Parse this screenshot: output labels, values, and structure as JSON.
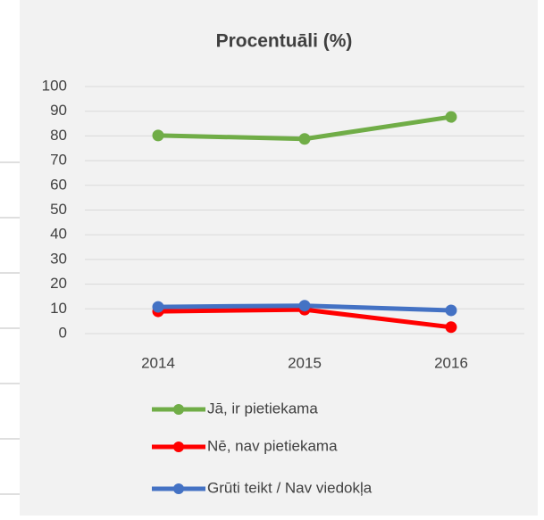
{
  "chart_data": {
    "type": "line",
    "title": "Procentuāli (%)",
    "categories": [
      "2014",
      "2015",
      "2016"
    ],
    "series": [
      {
        "name": "Jā, ir pietiekama",
        "color": "#70ad47",
        "values": [
          80.2,
          78.8,
          87.7
        ]
      },
      {
        "name": "Nē, nav pietiekama",
        "color": "#ff0000",
        "values": [
          9,
          9.7,
          2.6
        ]
      },
      {
        "name": "Grūti teikt / Nav viedokļa",
        "color": "#4472c4",
        "values": [
          10.8,
          11.3,
          9.4
        ]
      }
    ],
    "ylim": [
      0,
      100
    ],
    "yticks": [
      0,
      10,
      20,
      30,
      40,
      50,
      60,
      70,
      80,
      90,
      100
    ],
    "grid": true,
    "legend": "bottom"
  }
}
